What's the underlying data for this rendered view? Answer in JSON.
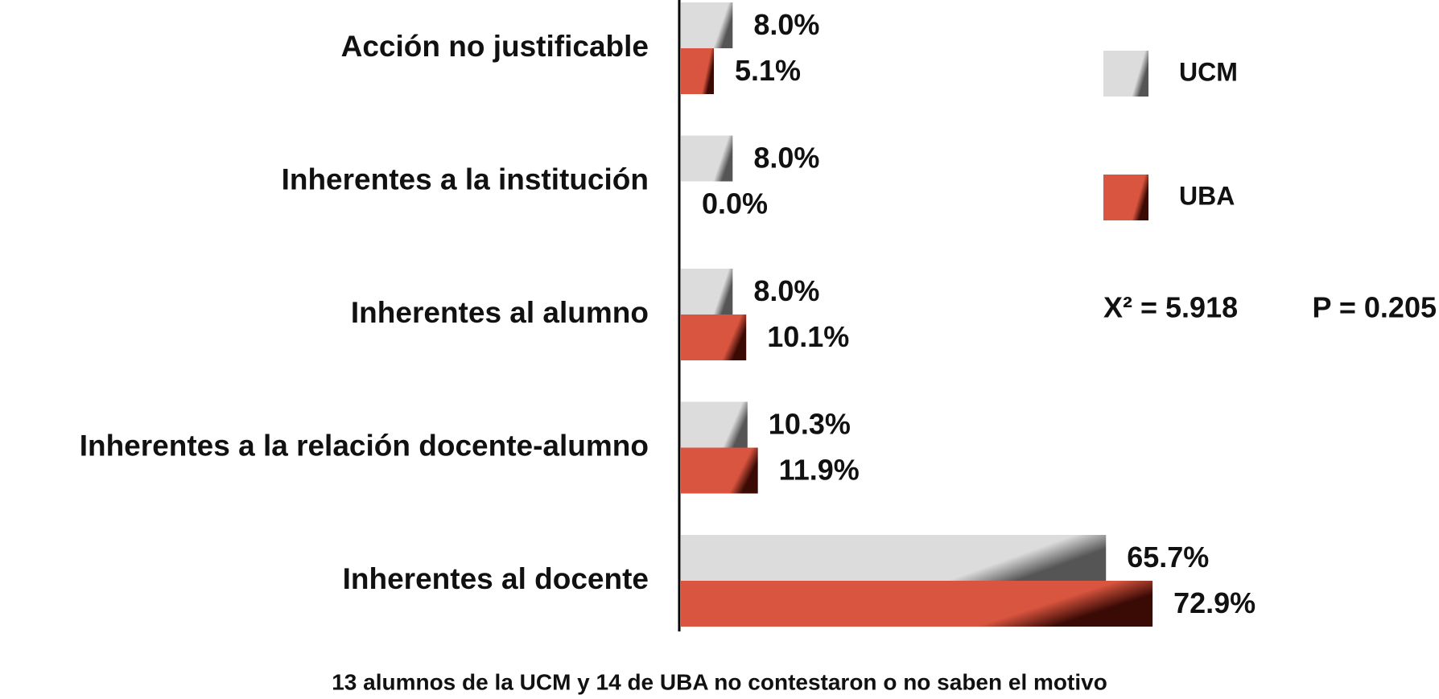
{
  "chart_data": {
    "type": "bar",
    "orientation": "horizontal",
    "categories": [
      "Acción no justificable",
      "Inherentes a la institución",
      "Inherentes al alumno",
      "Inherentes a la relación docente-alumno",
      "Inherentes al docente"
    ],
    "series": [
      {
        "name": "UCM",
        "color": "#dcdcdc",
        "values": [
          8.0,
          8.0,
          8.0,
          10.3,
          65.7
        ],
        "value_labels": [
          "8.0%",
          "8.0%",
          "8.0%",
          "10.3%",
          "65.7%"
        ]
      },
      {
        "name": "UBA",
        "color": "#d9553f",
        "values": [
          5.1,
          0.0,
          10.1,
          11.9,
          72.9
        ],
        "value_labels": [
          "5.1%",
          "0.0%",
          "10.1%",
          "11.9%",
          "72.9%"
        ]
      }
    ],
    "xlim": [
      0,
      100
    ],
    "annotations": [
      "X² = 5.918",
      "P = 0.205"
    ],
    "footnote": "13 alumnos de la UCM y 14 de UBA no contestaron o no saben el motivo"
  }
}
